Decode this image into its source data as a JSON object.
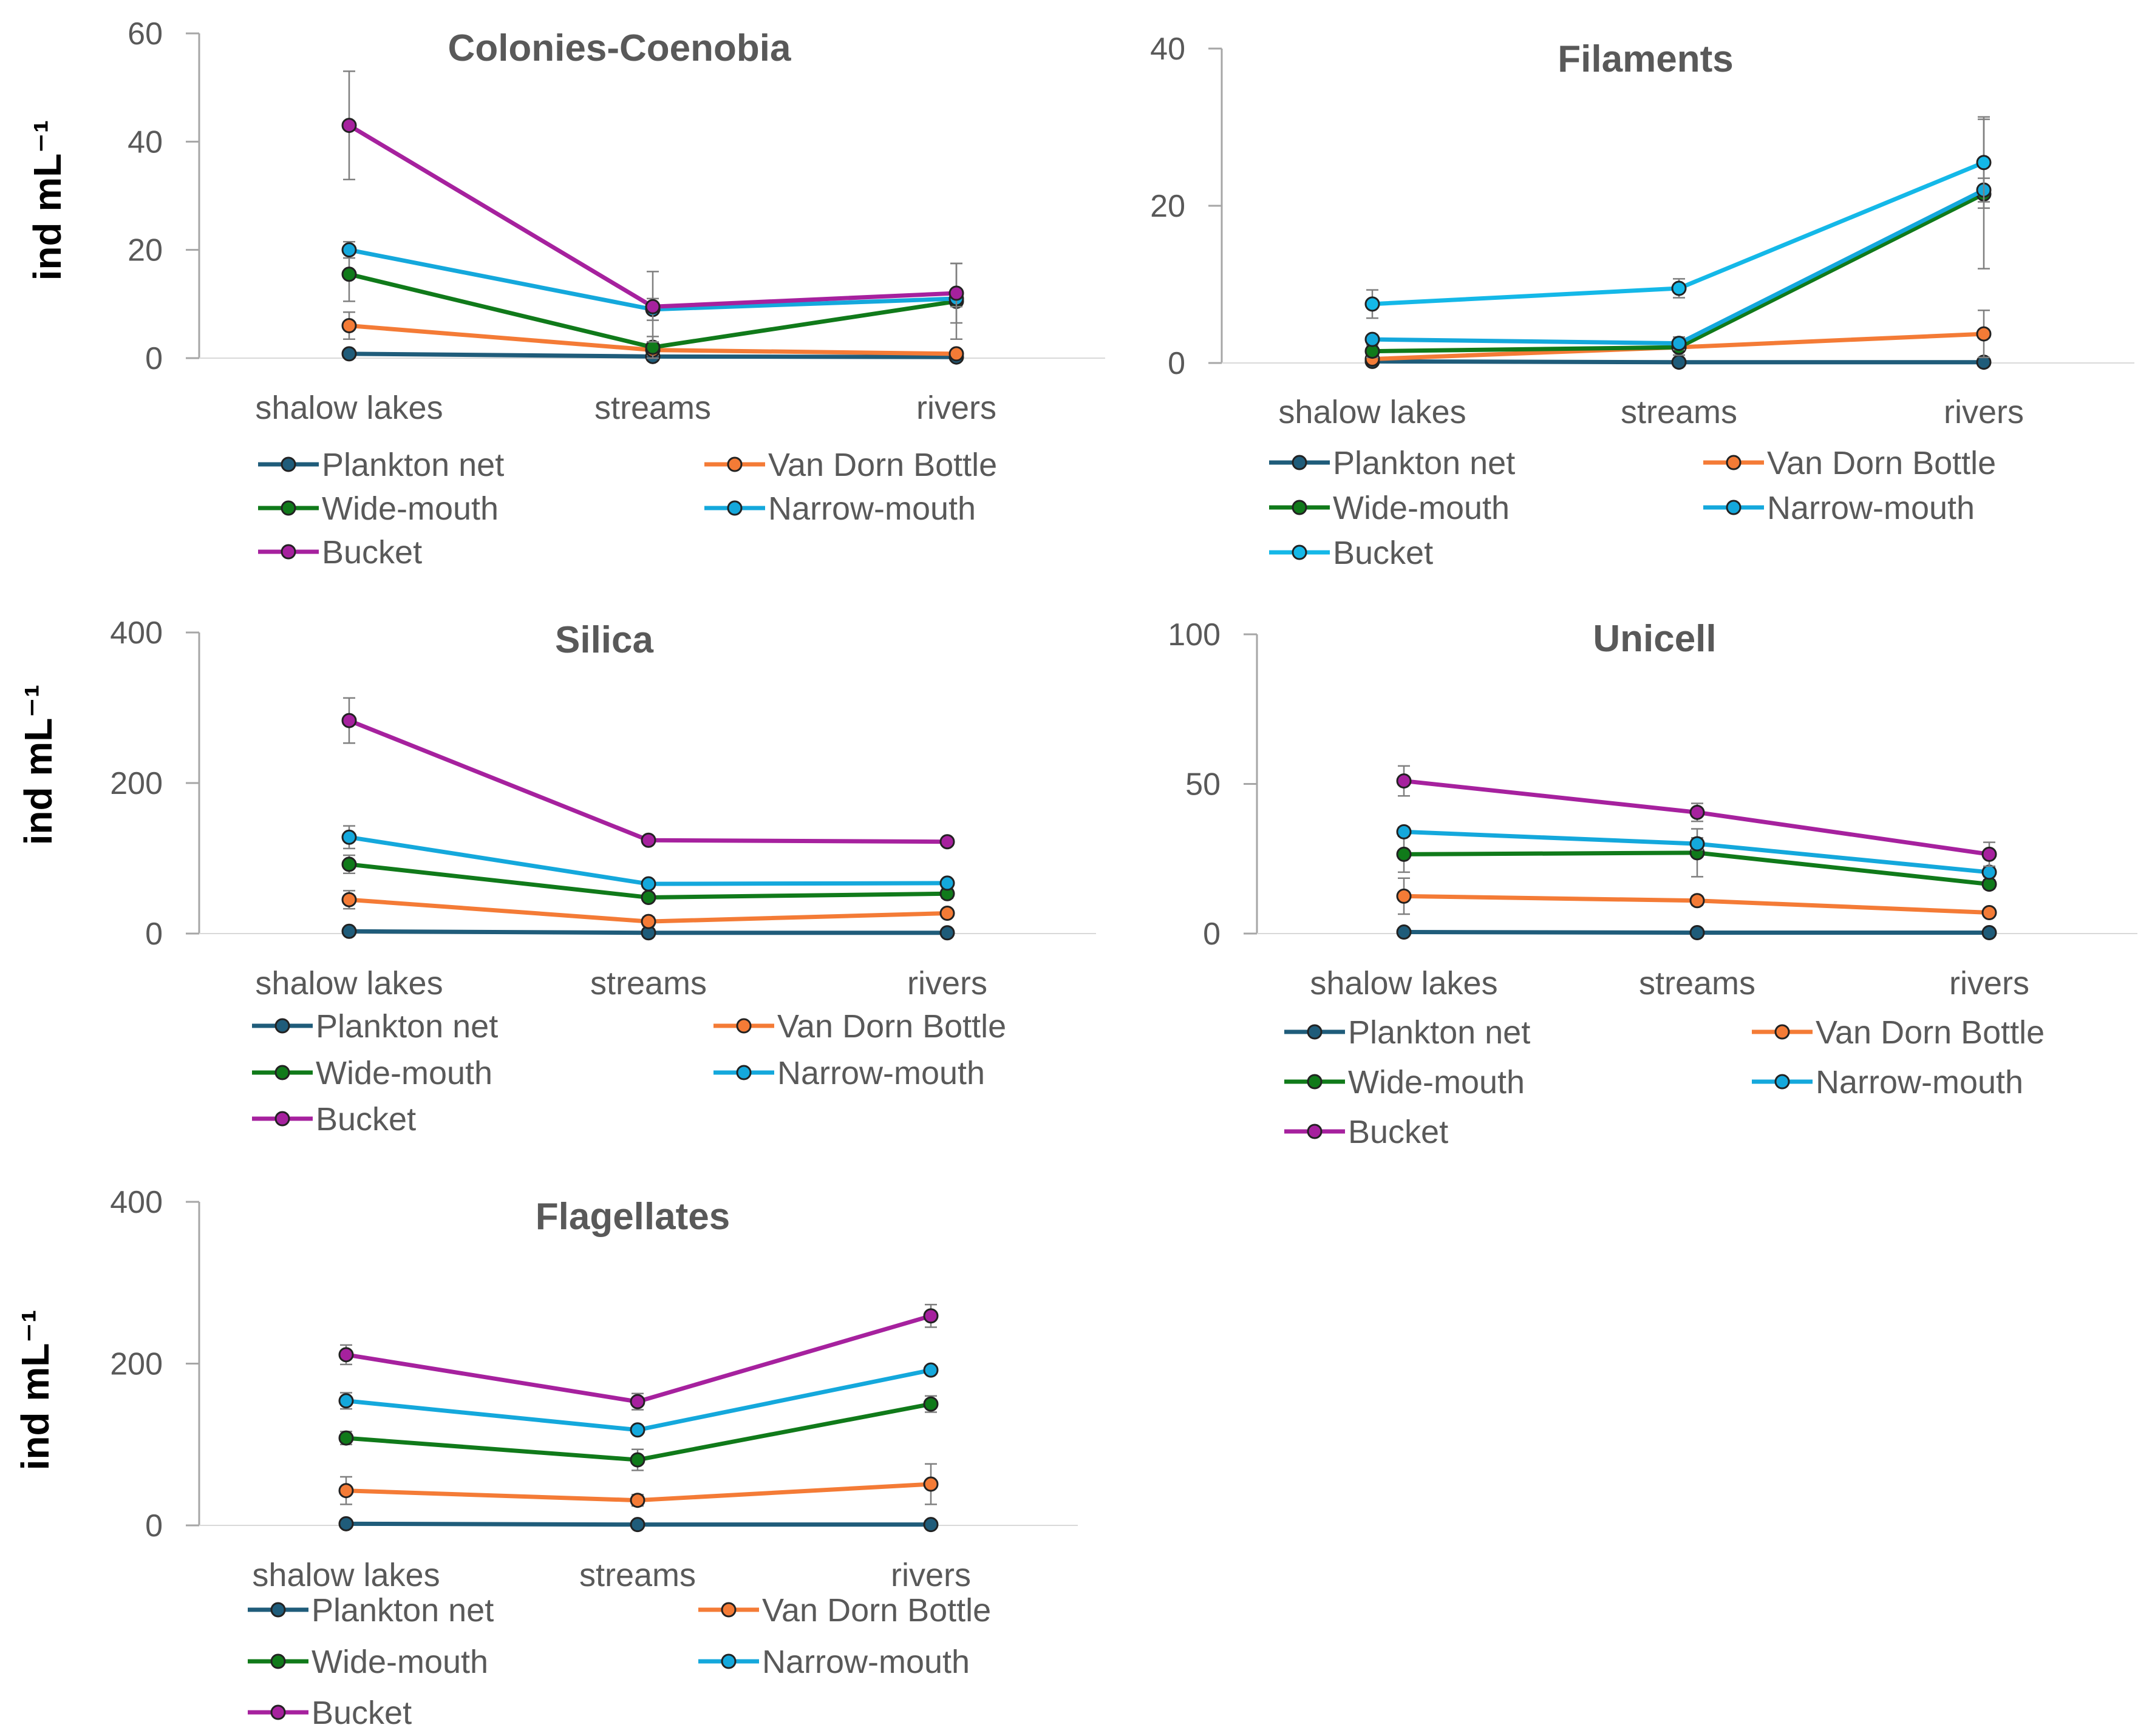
{
  "chart_data": [
    {
      "type": "line",
      "title": "Colonies-Coenobia",
      "ylabel": "ind mL⁻¹",
      "xlabel": "",
      "ylim": [
        0,
        60
      ],
      "yticks": [
        0,
        20,
        40,
        60
      ],
      "categories": [
        "shalow lakes",
        "streams",
        "rivers"
      ],
      "legend": "bottom",
      "series": [
        {
          "name": "Plankton net",
          "color": "#1f5c7a",
          "values": [
            0.8,
            0.3,
            0.2
          ],
          "errors": [
            0.3,
            0.2,
            0.1
          ]
        },
        {
          "name": "Van Dorn Bottle",
          "color": "#f47b36",
          "values": [
            6,
            1.5,
            0.8
          ],
          "errors": [
            2.5,
            1,
            0.5
          ]
        },
        {
          "name": "Wide-mouth",
          "color": "#107a1a",
          "values": [
            15.5,
            2,
            10.5
          ],
          "errors": [
            5,
            2,
            7
          ]
        },
        {
          "name": "Narrow-mouth",
          "color": "#14a8dc",
          "values": [
            20,
            9,
            11
          ],
          "errors": [
            1.5,
            2,
            1.5
          ]
        },
        {
          "name": "Bucket",
          "color": "#a6219e",
          "values": [
            43,
            9.5,
            12
          ],
          "errors": [
            10,
            6.5,
            5.5
          ]
        }
      ]
    },
    {
      "type": "line",
      "title": "Filaments",
      "ylabel": "",
      "xlabel": "",
      "ylim": [
        0,
        40
      ],
      "yticks": [
        0,
        20,
        40
      ],
      "categories": [
        "shalow lakes",
        "streams",
        "rivers"
      ],
      "legend": "bottom",
      "series": [
        {
          "name": "Plankton net",
          "color": "#1f5c7a",
          "values": [
            0.2,
            0.1,
            0.1
          ],
          "errors": [
            0.1,
            0.1,
            0.1
          ]
        },
        {
          "name": "Van Dorn Bottle",
          "color": "#f47b36",
          "values": [
            0.5,
            2,
            3.7
          ],
          "errors": [
            0.5,
            1,
            3
          ]
        },
        {
          "name": "Wide-mouth",
          "color": "#107a1a",
          "values": [
            1.5,
            2,
            21.5
          ],
          "errors": [
            0.8,
            1,
            9.5
          ]
        },
        {
          "name": "Narrow-mouth",
          "color": "#14a8dc",
          "values": [
            3,
            2.5,
            22
          ],
          "errors": [
            0.5,
            0.8,
            1.5
          ]
        },
        {
          "name": "Bucket",
          "color": "#14b8e8",
          "values": [
            7.5,
            9.5,
            25.5
          ],
          "errors": [
            1.8,
            1.2,
            5.8
          ]
        }
      ]
    },
    {
      "type": "line",
      "title": "Silica",
      "ylabel": "ind mL⁻¹",
      "xlabel": "",
      "ylim": [
        0,
        400
      ],
      "yticks": [
        0,
        200,
        400
      ],
      "categories": [
        "shalow lakes",
        "streams",
        "rivers"
      ],
      "legend": "bottom",
      "series": [
        {
          "name": "Plankton net",
          "color": "#1f5c7a",
          "values": [
            3,
            1,
            1
          ],
          "errors": [
            1,
            0.5,
            0.5
          ]
        },
        {
          "name": "Van Dorn Bottle",
          "color": "#f47b36",
          "values": [
            45,
            16,
            27
          ],
          "errors": [
            12,
            6,
            5
          ]
        },
        {
          "name": "Wide-mouth",
          "color": "#107a1a",
          "values": [
            92,
            48,
            53
          ],
          "errors": [
            12,
            5,
            6
          ]
        },
        {
          "name": "Narrow-mouth",
          "color": "#14a8dc",
          "values": [
            128,
            66,
            67
          ],
          "errors": [
            15,
            4,
            4
          ]
        },
        {
          "name": "Bucket",
          "color": "#a6219e",
          "values": [
            283,
            124,
            122
          ],
          "errors": [
            30,
            4,
            4
          ]
        }
      ]
    },
    {
      "type": "line",
      "title": "Unicell",
      "ylabel": "",
      "xlabel": "",
      "ylim": [
        0,
        100
      ],
      "yticks": [
        0,
        50,
        100
      ],
      "categories": [
        "shalow lakes",
        "streams",
        "rivers"
      ],
      "legend": "bottom",
      "series": [
        {
          "name": "Plankton net",
          "color": "#1f5c7a",
          "values": [
            0.5,
            0.3,
            0.3
          ],
          "errors": [
            0.2,
            0.2,
            0.2
          ]
        },
        {
          "name": "Van Dorn Bottle",
          "color": "#f47b36",
          "values": [
            12.5,
            11,
            7
          ],
          "errors": [
            6,
            1.5,
            1
          ]
        },
        {
          "name": "Wide-mouth",
          "color": "#107a1a",
          "values": [
            26.5,
            27,
            16.5
          ],
          "errors": [
            6,
            8,
            1.5
          ]
        },
        {
          "name": "Narrow-mouth",
          "color": "#14a8dc",
          "values": [
            34,
            30,
            20.5
          ],
          "errors": [
            1.5,
            2,
            1.5
          ]
        },
        {
          "name": "Bucket",
          "color": "#a6219e",
          "values": [
            51,
            40.5,
            26.5
          ],
          "errors": [
            5,
            3,
            4
          ]
        }
      ]
    },
    {
      "type": "line",
      "title": "Flagellates",
      "ylabel": "ind mL⁻¹",
      "xlabel": "",
      "ylim": [
        0,
        400
      ],
      "yticks": [
        0,
        200,
        400
      ],
      "categories": [
        "shalow lakes",
        "streams",
        "rivers"
      ],
      "legend": "bottom",
      "series": [
        {
          "name": "Plankton net",
          "color": "#1f5c7a",
          "values": [
            2,
            1,
            1
          ],
          "errors": [
            1,
            0.5,
            0.5
          ]
        },
        {
          "name": "Van Dorn Bottle",
          "color": "#f47b36",
          "values": [
            43,
            31,
            51
          ],
          "errors": [
            17,
            7,
            25
          ]
        },
        {
          "name": "Wide-mouth",
          "color": "#107a1a",
          "values": [
            108,
            81,
            150
          ],
          "errors": [
            8,
            13,
            10
          ]
        },
        {
          "name": "Narrow-mouth",
          "color": "#14a8dc",
          "values": [
            154,
            118,
            192
          ],
          "errors": [
            10,
            4,
            4
          ]
        },
        {
          "name": "Bucket",
          "color": "#a6219e",
          "values": [
            211,
            153,
            259
          ],
          "errors": [
            12,
            10,
            14
          ]
        }
      ]
    }
  ]
}
